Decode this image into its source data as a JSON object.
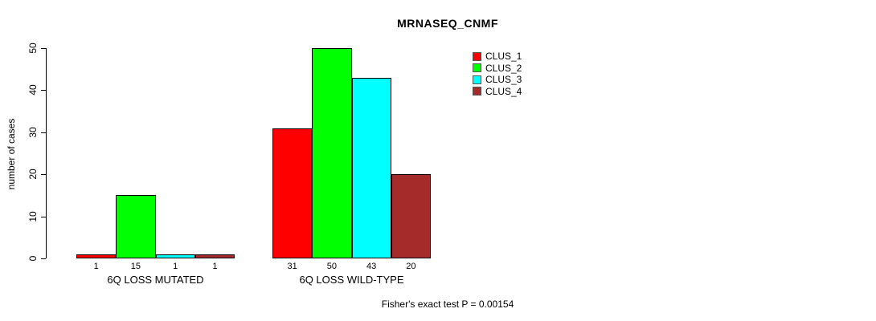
{
  "header": {
    "title": "MRNASEQ_CNMF"
  },
  "footer": {
    "note": "Fisher's exact test P = 0.00154"
  },
  "chart_data": {
    "type": "bar",
    "title": "MRNASEQ_CNMF",
    "xlabel": "",
    "ylabel": "number of cases",
    "ylim": [
      0,
      50
    ],
    "yticks": [
      0,
      10,
      20,
      30,
      40,
      50
    ],
    "grid": false,
    "legend_position": "top-right",
    "categories": [
      "6Q LOSS MUTATED",
      "6Q LOSS WILD-TYPE"
    ],
    "series": [
      {
        "name": "CLUS_1",
        "color": "#FF0000",
        "values": [
          1,
          31
        ]
      },
      {
        "name": "CLUS_2",
        "color": "#00FF00",
        "values": [
          15,
          50
        ]
      },
      {
        "name": "CLUS_3",
        "color": "#00FFFF",
        "values": [
          1,
          43
        ]
      },
      {
        "name": "CLUS_4",
        "color": "#A52A2A",
        "values": [
          1,
          20
        ]
      }
    ],
    "bar_value_labels": [
      [
        "1",
        "15",
        "1",
        "1"
      ],
      [
        "31",
        "50",
        "43",
        "20"
      ]
    ],
    "annotation": "Fisher's exact test P = 0.00154"
  }
}
